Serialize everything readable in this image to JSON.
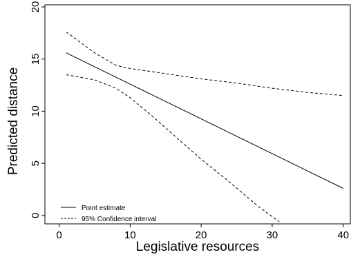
{
  "chart_data": {
    "type": "line",
    "xlabel": "Legislative resources",
    "ylabel": "Predicted distance",
    "xlim": [
      -2,
      41
    ],
    "ylim": [
      -0.8,
      20.2
    ],
    "xticks": [
      0,
      10,
      20,
      30,
      40
    ],
    "yticks": [
      0,
      5,
      10,
      15,
      20
    ],
    "grid": false,
    "legend_position": "bottom-left",
    "series": [
      {
        "name": "Point estimate",
        "style": "solid",
        "x": [
          1,
          40
        ],
        "y": [
          15.6,
          2.6
        ]
      },
      {
        "name": "95% Confidence interval",
        "style": "dashed",
        "x": [
          1,
          5,
          8,
          10,
          15,
          20,
          25,
          30,
          35,
          40
        ],
        "y": [
          17.6,
          15.6,
          14.4,
          14.1,
          13.6,
          13.1,
          12.7,
          12.2,
          11.8,
          11.5
        ]
      },
      {
        "name": "95% Confidence interval",
        "style": "dashed",
        "x": [
          1,
          5,
          8,
          10,
          13,
          16,
          20,
          24,
          28,
          31
        ],
        "y": [
          13.5,
          13.0,
          12.2,
          11.3,
          9.6,
          7.8,
          5.4,
          3.2,
          0.9,
          -0.6
        ]
      }
    ],
    "legend": [
      {
        "label": "Point estimate",
        "style": "solid"
      },
      {
        "label": "95% Confidence interval",
        "style": "dashed"
      }
    ]
  }
}
